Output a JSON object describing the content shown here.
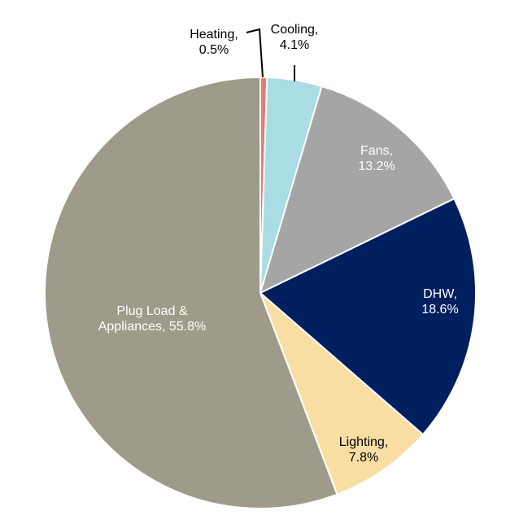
{
  "chart_data": {
    "type": "pie",
    "title": "",
    "slices": [
      {
        "label": "Heating",
        "value": 0.5,
        "display": "0.5%",
        "color": "#E07F72"
      },
      {
        "label": "Cooling",
        "value": 4.1,
        "display": "4.1%",
        "color": "#A9DCE3"
      },
      {
        "label": "Fans",
        "value": 13.2,
        "display": "13.2%",
        "color": "#A5A5A5"
      },
      {
        "label": "DHW",
        "value": 18.6,
        "display": "18.6%",
        "color": "#001F5F"
      },
      {
        "label": "Lighting",
        "value": 7.8,
        "display": "7.8%",
        "color": "#F9DEA4"
      },
      {
        "label": "Plug Load & Appliances",
        "value": 55.8,
        "display": "55.8%",
        "color": "#9E9B8A"
      }
    ],
    "label_lines": {
      "Heating": [
        "Heating,",
        "0.5%"
      ],
      "Cooling": [
        "Cooling,",
        "4.1%"
      ],
      "Fans": [
        "Fans,",
        "13.2%"
      ],
      "DHW": [
        "DHW,",
        "18.6%"
      ],
      "Lighting": [
        "Lighting,",
        "7.8%"
      ],
      "Plug Load & Appliances": [
        "Plug Load &",
        "Appliances, 55.8%"
      ]
    },
    "label_colors": {
      "Heating": "#000000",
      "Cooling": "#000000",
      "Fans": "#ffffff",
      "DHW": "#ffffff",
      "Lighting": "#000000",
      "Plug Load & Appliances": "#ffffff"
    },
    "start_angle": "top (12 o'clock)",
    "direction": "clockwise",
    "legend": "none"
  }
}
